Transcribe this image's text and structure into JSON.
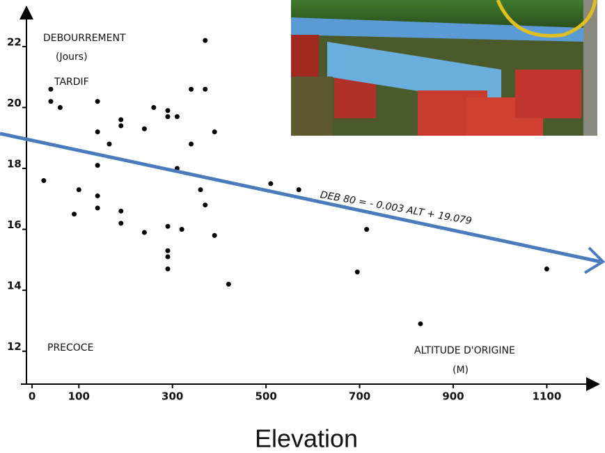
{
  "chart_data": {
    "type": "scatter",
    "annotations": {
      "y_title": "DEBOURREMENT",
      "y_unit": "(Jours)",
      "late": "TARDIF",
      "early": "PRECOCE",
      "x_title": "ALTITUDE D'ORIGINE",
      "x_unit": "(M)",
      "equation": "DEB 80 = - 0.003 ALT + 19.079"
    },
    "x_label": "Elevation",
    "color": "#000000",
    "trend_color": "#4a7bbd",
    "x": [
      25,
      40,
      40,
      60,
      90,
      100,
      140,
      140,
      140,
      140,
      140,
      165,
      190,
      190,
      190,
      190,
      240,
      240,
      260,
      290,
      290,
      290,
      290,
      290,
      290,
      310,
      310,
      320,
      340,
      340,
      360,
      370,
      370,
      370,
      390,
      390,
      420,
      510,
      570,
      695,
      715,
      830,
      1100
    ],
    "values": [
      17.6,
      20.6,
      20.2,
      20.0,
      16.5,
      17.3,
      16.7,
      17.1,
      18.1,
      19.2,
      20.2,
      18.8,
      19.6,
      19.4,
      16.6,
      16.2,
      19.3,
      15.9,
      20.0,
      19.9,
      19.7,
      16.1,
      15.3,
      15.1,
      14.7,
      19.7,
      18.0,
      16.0,
      18.8,
      20.6,
      17.3,
      22.2,
      20.6,
      16.8,
      19.2,
      15.8,
      14.2,
      17.5,
      17.3,
      14.6,
      16.0,
      12.9,
      14.7
    ],
    "xlim": [
      -12,
      1211
    ],
    "ylim": [
      10.92,
      23.3
    ],
    "xticks": [
      0,
      100,
      300,
      500,
      700,
      900,
      1100
    ],
    "yticks": [
      12,
      14,
      16,
      18,
      20,
      22
    ]
  }
}
